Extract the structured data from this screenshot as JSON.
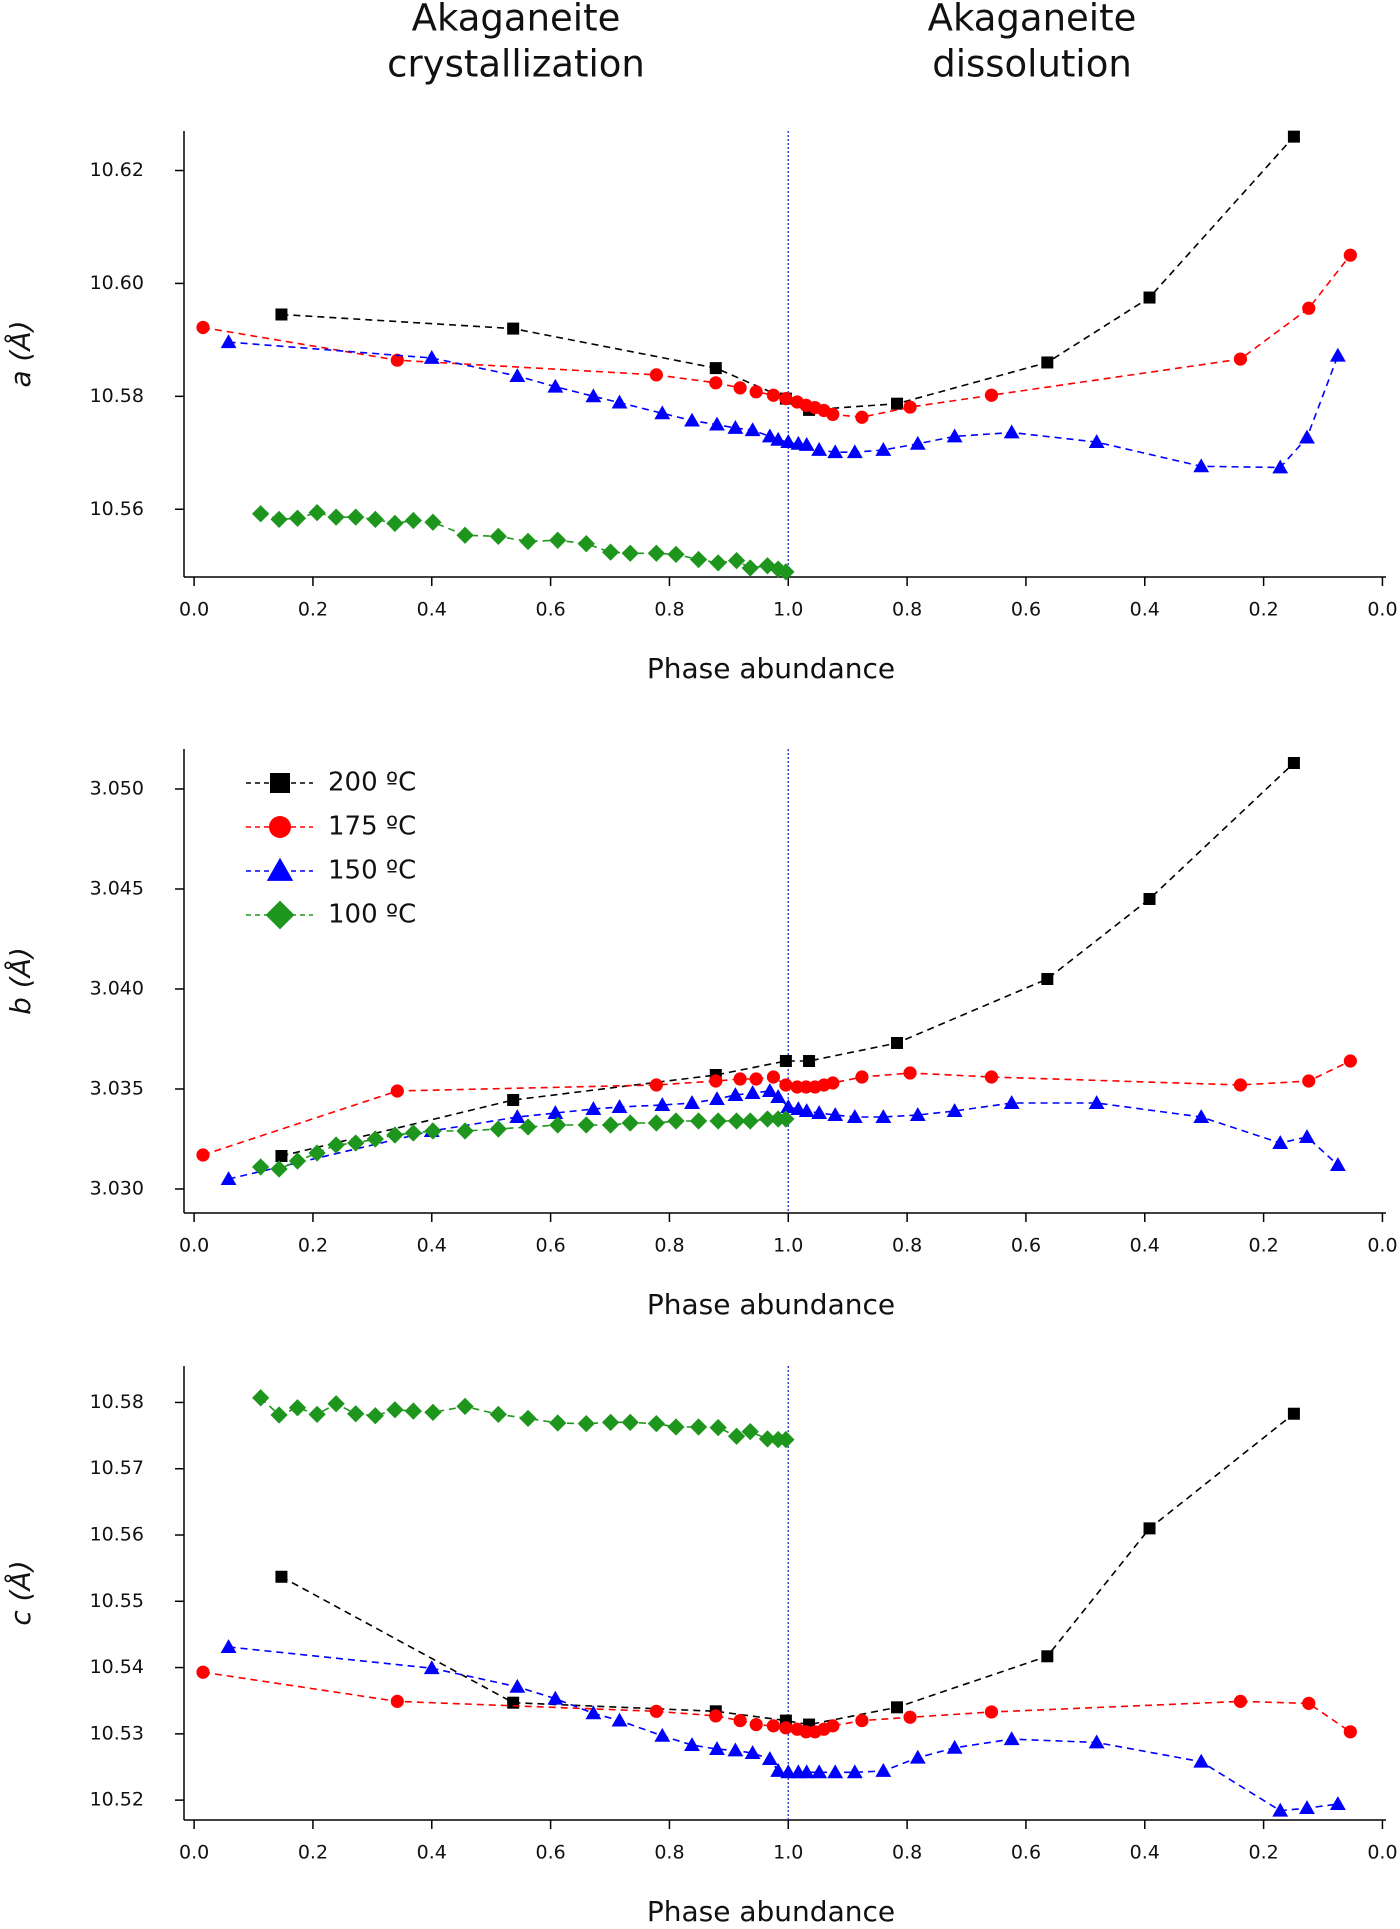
{
  "header": [
    [
      "Akaganeite",
      "crystallization"
    ],
    [
      "Akaganeite",
      "dissolution"
    ]
  ],
  "chart_data": [
    {
      "type": "line",
      "xlabel": "Phase abundance",
      "ylabel": "a (Å)",
      "xlim": [
        -0.017,
        2.006
      ],
      "ylim": [
        10.548,
        10.627
      ],
      "xticks": [
        {
          "value": 0,
          "label": "0.0"
        },
        0.2,
        0.4,
        0.6,
        0.8,
        {
          "value": 1,
          "label": "1.0"
        },
        {
          "value": 1.2,
          "label": "0.8"
        },
        {
          "value": 1.4,
          "label": "0.6"
        },
        {
          "value": 1.6,
          "label": "0.4"
        },
        {
          "value": 1.8,
          "label": "0.2"
        },
        {
          "value": 2,
          "label": "0.0"
        }
      ],
      "yticks": [
        10.56,
        10.58,
        {
          "value": 10.6,
          "label": "10.60"
        },
        10.62
      ],
      "reference_line": {
        "x": 1,
        "color": "#3344dd"
      },
      "series": [
        {
          "color": "#000000",
          "marker": "square",
          "x": [
            0.147,
            0.537,
            0.878,
            0.996,
            1.035,
            1.183,
            1.436,
            1.608,
            1.851
          ],
          "values": [
            10.5945,
            10.592,
            10.585,
            10.5796,
            10.5776,
            10.5787,
            10.586,
            10.5975,
            10.626
          ]
        },
        {
          "color": "#ff0000",
          "marker": "circle",
          "x": [
            0.015,
            0.342,
            0.778,
            0.878,
            0.919,
            0.946,
            0.975,
            0.996,
            1.015,
            1.03,
            1.045,
            1.06,
            1.075,
            1.124,
            1.205,
            1.342,
            1.761,
            1.876,
            1.946
          ],
          "values": [
            10.5922,
            10.5864,
            10.5838,
            10.5824,
            10.5815,
            10.5808,
            10.5802,
            10.5796,
            10.579,
            10.5784,
            10.578,
            10.5775,
            10.5768,
            10.5763,
            10.5781,
            10.5802,
            10.5866,
            10.5956,
            10.605
          ]
        },
        {
          "color": "#0000ff",
          "marker": "triangle",
          "x": [
            0.058,
            0.4,
            0.544,
            0.608,
            0.672,
            0.716,
            0.788,
            0.838,
            0.88,
            0.911,
            0.94,
            0.969,
            0.983,
            1.0,
            1.017,
            1.031,
            1.052,
            1.079,
            1.112,
            1.16,
            1.218,
            1.28,
            1.376,
            1.519,
            1.695,
            1.828,
            1.873,
            1.925
          ],
          "values": [
            10.5896,
            10.5868,
            10.5836,
            10.5817,
            10.58,
            10.5789,
            10.577,
            10.5757,
            10.575,
            10.5744,
            10.574,
            10.5729,
            10.5723,
            10.5719,
            10.5716,
            10.5714,
            10.5705,
            10.5701,
            10.5701,
            10.5705,
            10.5716,
            10.5729,
            10.5736,
            10.5719,
            10.5676,
            10.5674,
            10.5727,
            10.5872
          ]
        },
        {
          "color": "#1e961e",
          "marker": "diamond",
          "x": [
            0.112,
            0.143,
            0.174,
            0.207,
            0.239,
            0.272,
            0.305,
            0.338,
            0.369,
            0.402,
            0.456,
            0.512,
            0.562,
            0.612,
            0.66,
            0.701,
            0.734,
            0.778,
            0.811,
            0.849,
            0.882,
            0.913,
            0.936,
            0.965,
            0.983,
            0.996
          ],
          "values": [
            10.5592,
            10.5582,
            10.5584,
            10.5594,
            10.5586,
            10.5586,
            10.5582,
            10.5575,
            10.558,
            10.5577,
            10.5554,
            10.5552,
            10.5543,
            10.5545,
            10.5539,
            10.5524,
            10.5522,
            10.5522,
            10.552,
            10.5511,
            10.5505,
            10.5509,
            10.5496,
            10.55,
            10.5494,
            10.5489
          ]
        }
      ]
    },
    {
      "type": "line",
      "xlabel": "Phase abundance",
      "ylabel": "b (Å)",
      "xlim": [
        -0.017,
        2.006
      ],
      "ylim": [
        3.0288,
        3.052
      ],
      "xticks": [
        {
          "value": 0,
          "label": "0.0"
        },
        0.2,
        0.4,
        0.6,
        0.8,
        {
          "value": 1,
          "label": "1.0"
        },
        {
          "value": 1.2,
          "label": "0.8"
        },
        {
          "value": 1.4,
          "label": "0.6"
        },
        {
          "value": 1.6,
          "label": "0.4"
        },
        {
          "value": 1.8,
          "label": "0.2"
        },
        {
          "value": 2,
          "label": "0.0"
        }
      ],
      "yticks": [
        {
          "value": 3.03,
          "label": "3.030"
        },
        3.035,
        {
          "value": 3.04,
          "label": "3.040"
        },
        3.045,
        {
          "value": 3.05,
          "label": "3.050"
        }
      ],
      "reference_line": {
        "x": 1,
        "color": "#3344dd"
      },
      "legend": "top-left",
      "series": [
        {
          "name": "200 ºC",
          "color": "#000000",
          "marker": "square",
          "x": [
            0.147,
            0.537,
            0.878,
            0.996,
            1.035,
            1.183,
            1.436,
            1.608,
            1.851
          ],
          "values": [
            3.03165,
            3.03445,
            3.0357,
            3.0364,
            3.0364,
            3.0373,
            3.0405,
            3.0445,
            3.0513
          ]
        },
        {
          "name": "175 ºC",
          "color": "#ff0000",
          "marker": "circle",
          "x": [
            0.015,
            0.342,
            0.778,
            0.878,
            0.919,
            0.946,
            0.975,
            0.996,
            1.015,
            1.03,
            1.045,
            1.06,
            1.075,
            1.124,
            1.205,
            1.342,
            1.761,
            1.876,
            1.946
          ],
          "values": [
            3.0317,
            3.0349,
            3.0352,
            3.0354,
            3.0355,
            3.0355,
            3.0356,
            3.0352,
            3.0351,
            3.0351,
            3.0351,
            3.0352,
            3.0353,
            3.0356,
            3.0358,
            3.0356,
            3.0352,
            3.0354,
            3.0364
          ]
        },
        {
          "name": "150 ºC",
          "color": "#0000ff",
          "marker": "triangle",
          "x": [
            0.058,
            0.4,
            0.544,
            0.608,
            0.672,
            0.716,
            0.788,
            0.838,
            0.88,
            0.911,
            0.94,
            0.969,
            0.983,
            1.0,
            1.017,
            1.031,
            1.052,
            1.079,
            1.112,
            1.16,
            1.218,
            1.28,
            1.376,
            1.519,
            1.695,
            1.828,
            1.873,
            1.925
          ],
          "values": [
            3.0305,
            3.0329,
            3.0336,
            3.0338,
            3.034,
            3.0341,
            3.0342,
            3.0343,
            3.0345,
            3.0347,
            3.0348,
            3.0349,
            3.0346,
            3.0341,
            3.034,
            3.0339,
            3.0338,
            3.0337,
            3.0336,
            3.0336,
            3.0337,
            3.0339,
            3.0343,
            3.0343,
            3.0336,
            3.0323,
            3.0326,
            3.0312
          ]
        },
        {
          "name": "100 ºC",
          "color": "#1e961e",
          "marker": "diamond",
          "x": [
            0.112,
            0.143,
            0.174,
            0.207,
            0.239,
            0.272,
            0.305,
            0.338,
            0.369,
            0.402,
            0.456,
            0.512,
            0.562,
            0.612,
            0.66,
            0.701,
            0.734,
            0.778,
            0.811,
            0.849,
            0.882,
            0.913,
            0.936,
            0.965,
            0.983,
            0.996
          ],
          "values": [
            3.0311,
            3.031,
            3.0314,
            3.0318,
            3.0322,
            3.0323,
            3.0325,
            3.0327,
            3.0328,
            3.0329,
            3.0329,
            3.033,
            3.0331,
            3.0332,
            3.0332,
            3.0332,
            3.0333,
            3.0333,
            3.0334,
            3.0334,
            3.0334,
            3.0334,
            3.0334,
            3.0335,
            3.0335,
            3.0335
          ]
        }
      ]
    },
    {
      "type": "line",
      "xlabel": "Phase abundance",
      "ylabel": "c (Å)",
      "xlim": [
        -0.017,
        2.006
      ],
      "ylim": [
        10.517,
        10.5855
      ],
      "xticks": [
        {
          "value": 0,
          "label": "0.0"
        },
        0.2,
        0.4,
        0.6,
        0.8,
        {
          "value": 1,
          "label": "1.0"
        },
        {
          "value": 1.2,
          "label": "0.8"
        },
        {
          "value": 1.4,
          "label": "0.6"
        },
        {
          "value": 1.6,
          "label": "0.4"
        },
        {
          "value": 1.8,
          "label": "0.2"
        },
        {
          "value": 2,
          "label": "0.0"
        }
      ],
      "yticks": [
        10.52,
        10.53,
        10.54,
        10.55,
        10.56,
        10.57,
        10.58
      ],
      "reference_line": {
        "x": 1,
        "color": "#3344dd"
      },
      "series": [
        {
          "color": "#000000",
          "marker": "square",
          "x": [
            0.147,
            0.537,
            0.878,
            0.996,
            1.035,
            1.183,
            1.436,
            1.608,
            1.851
          ],
          "values": [
            10.5537,
            10.5347,
            10.5334,
            10.532,
            10.5314,
            10.534,
            10.5417,
            10.561,
            10.5783
          ]
        },
        {
          "color": "#ff0000",
          "marker": "circle",
          "x": [
            0.015,
            0.342,
            0.778,
            0.878,
            0.919,
            0.946,
            0.975,
            0.996,
            1.015,
            1.03,
            1.045,
            1.06,
            1.075,
            1.124,
            1.205,
            1.342,
            1.761,
            1.876,
            1.946
          ],
          "values": [
            10.5393,
            10.5349,
            10.5334,
            10.5327,
            10.532,
            10.5314,
            10.5312,
            10.5309,
            10.5307,
            10.5303,
            10.5303,
            10.5307,
            10.5312,
            10.532,
            10.5325,
            10.5333,
            10.5349,
            10.5346,
            10.5303
          ]
        },
        {
          "color": "#0000ff",
          "marker": "triangle",
          "x": [
            0.058,
            0.4,
            0.544,
            0.608,
            0.672,
            0.716,
            0.788,
            0.838,
            0.88,
            0.911,
            0.94,
            0.969,
            0.983,
            1.0,
            1.017,
            1.031,
            1.052,
            1.079,
            1.112,
            1.16,
            1.218,
            1.28,
            1.376,
            1.519,
            1.695,
            1.828,
            1.873,
            1.925
          ],
          "values": [
            10.5431,
            10.5399,
            10.5371,
            10.5353,
            10.5331,
            10.532,
            10.5297,
            10.5283,
            10.5277,
            10.5275,
            10.5271,
            10.5262,
            10.5244,
            10.5242,
            10.5242,
            10.5242,
            10.5242,
            10.5242,
            10.5242,
            10.5244,
            10.5264,
            10.5279,
            10.5292,
            10.5287,
            10.5258,
            10.5184,
            10.5188,
            10.5194
          ]
        },
        {
          "color": "#1e961e",
          "marker": "diamond",
          "x": [
            0.112,
            0.143,
            0.174,
            0.207,
            0.239,
            0.272,
            0.305,
            0.338,
            0.369,
            0.402,
            0.456,
            0.512,
            0.562,
            0.612,
            0.66,
            0.701,
            0.734,
            0.778,
            0.811,
            0.849,
            0.882,
            0.913,
            0.936,
            0.965,
            0.983,
            0.996
          ],
          "values": [
            10.5807,
            10.5781,
            10.5792,
            10.5782,
            10.5798,
            10.5783,
            10.578,
            10.5789,
            10.5787,
            10.5785,
            10.5794,
            10.5782,
            10.5776,
            10.5769,
            10.5768,
            10.577,
            10.577,
            10.5768,
            10.5763,
            10.5763,
            10.5762,
            10.5749,
            10.5756,
            10.5745,
            10.5744,
            10.5744
          ]
        }
      ]
    }
  ]
}
